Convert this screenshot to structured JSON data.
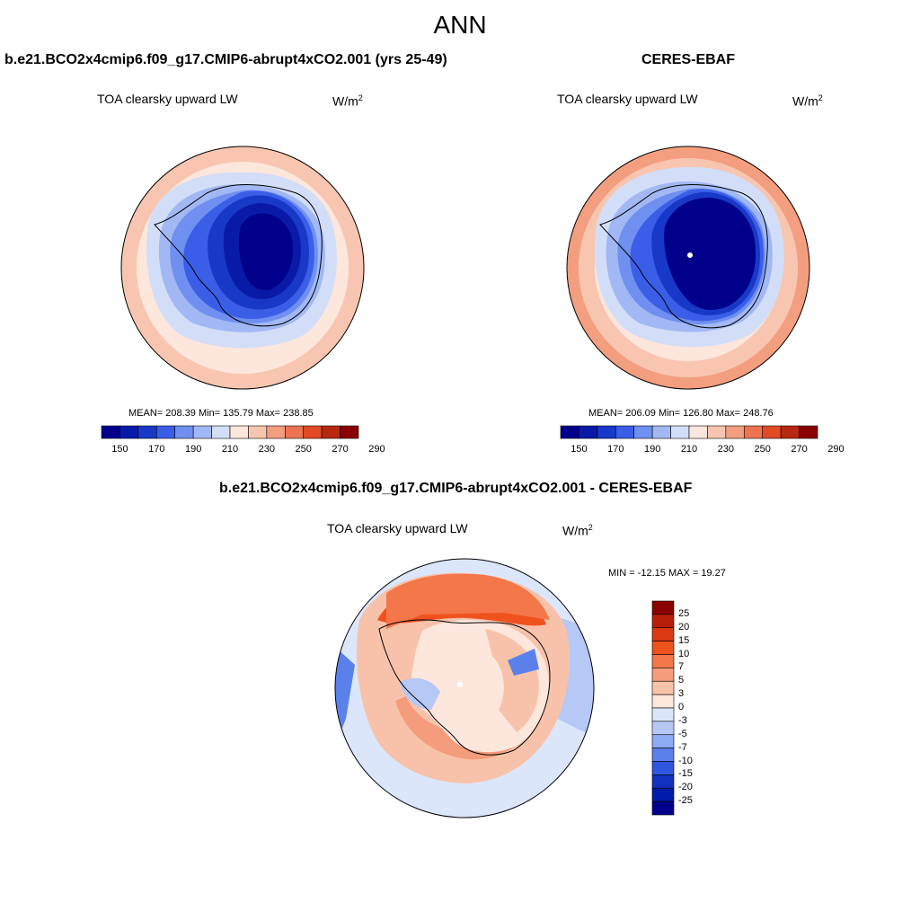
{
  "title": "ANN",
  "panels": {
    "model": {
      "heading": "b.e21.BCO2x4cmip6.f09_g17.CMIP6-abrupt4xCO2.001 (yrs 25-49)",
      "variable": "TOA clearsky upward LW",
      "units_base": "W/m",
      "units_exp": "2",
      "stats": "MEAN= 208.39  Min= 135.79  Max= 238.85"
    },
    "obs": {
      "heading": "CERES-EBAF",
      "variable": "TOA clearsky upward LW",
      "units_base": "W/m",
      "units_exp": "2",
      "stats": "MEAN= 206.09  Min= 126.80  Max= 248.76"
    },
    "diff": {
      "heading": "b.e21.BCO2x4cmip6.f09_g17.CMIP6-abrupt4xCO2.001 - CERES-EBAF",
      "variable": "TOA clearsky upward LW",
      "units_base": "W/m",
      "units_exp": "2",
      "stats": "MIN = -12.15 MAX =  19.27"
    }
  },
  "colorbars": {
    "absolute": {
      "labels": [
        "150",
        "170",
        "190",
        "210",
        "230",
        "250",
        "270",
        "290"
      ],
      "colors": [
        "#00008b",
        "#0a1aa8",
        "#1838c8",
        "#3a5ee8",
        "#6f90f0",
        "#a2b8f4",
        "#d2def8",
        "#fde6dc",
        "#f8c6b0",
        "#f49e80",
        "#ee7450",
        "#e24a26",
        "#b82810",
        "#8b0000"
      ]
    },
    "difference": {
      "labels": [
        "25",
        "20",
        "15",
        "10",
        "7",
        "5",
        "3",
        "0",
        "-3",
        "-5",
        "-7",
        "-10",
        "-15",
        "-20",
        "-25"
      ],
      "colors": [
        "#8b0000",
        "#b81e0a",
        "#dc3a14",
        "#f0521e",
        "#f4774a",
        "#f49c7c",
        "#f8c2aa",
        "#fde6dc",
        "#dce6fa",
        "#b6c8f6",
        "#8eaaf2",
        "#5a80ec",
        "#2e56e0",
        "#1030c0",
        "#001ca8",
        "#00008b"
      ]
    }
  }
}
